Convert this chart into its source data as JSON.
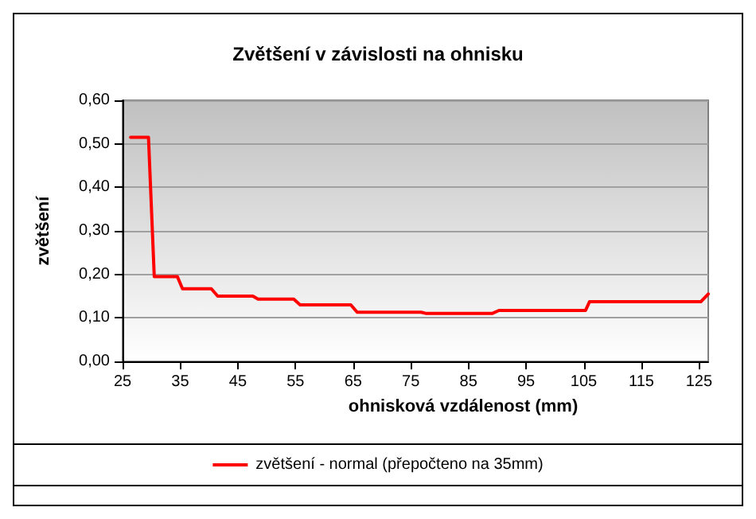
{
  "chart_data": {
    "type": "line",
    "title": "Zvětšení v závislosti na ohnisku",
    "xlabel": "ohnisková vzdálenost (mm)",
    "ylabel": "zvětšení",
    "series": [
      {
        "name": "zvětšení - normal (přepočteno na 35mm)",
        "color": "#ff0000",
        "x": [
          26.4,
          29.5,
          30.5,
          34.5,
          35.4,
          40.4,
          41.5,
          47.6,
          48.5,
          54.7,
          55.8,
          64.6,
          65.7,
          76.8,
          77.7,
          89.1,
          90.3,
          105.3,
          106,
          125.3,
          126.6
        ],
        "values": [
          0.515,
          0.515,
          0.195,
          0.195,
          0.167,
          0.167,
          0.15,
          0.15,
          0.143,
          0.143,
          0.13,
          0.13,
          0.113,
          0.113,
          0.11,
          0.11,
          0.117,
          0.117,
          0.137,
          0.137,
          0.155
        ]
      }
    ],
    "xlim": [
      25,
      126.6
    ],
    "xticks": [
      25,
      35,
      45,
      55,
      65,
      75,
      85,
      95,
      105,
      115,
      125
    ],
    "ylim": [
      0,
      0.6
    ],
    "yticks": [
      {
        "value": 0,
        "label": "0,00"
      },
      {
        "value": 0.1,
        "label": "0,10"
      },
      {
        "value": 0.2,
        "label": "0,20"
      },
      {
        "value": 0.3,
        "label": "0,30"
      },
      {
        "value": 0.4,
        "label": "0,40"
      },
      {
        "value": 0.5,
        "label": "0,50"
      },
      {
        "value": 0.6,
        "label": "0,60"
      }
    ],
    "grid": "y",
    "legend": "bottom",
    "marker": "none",
    "line_style": "solid"
  }
}
